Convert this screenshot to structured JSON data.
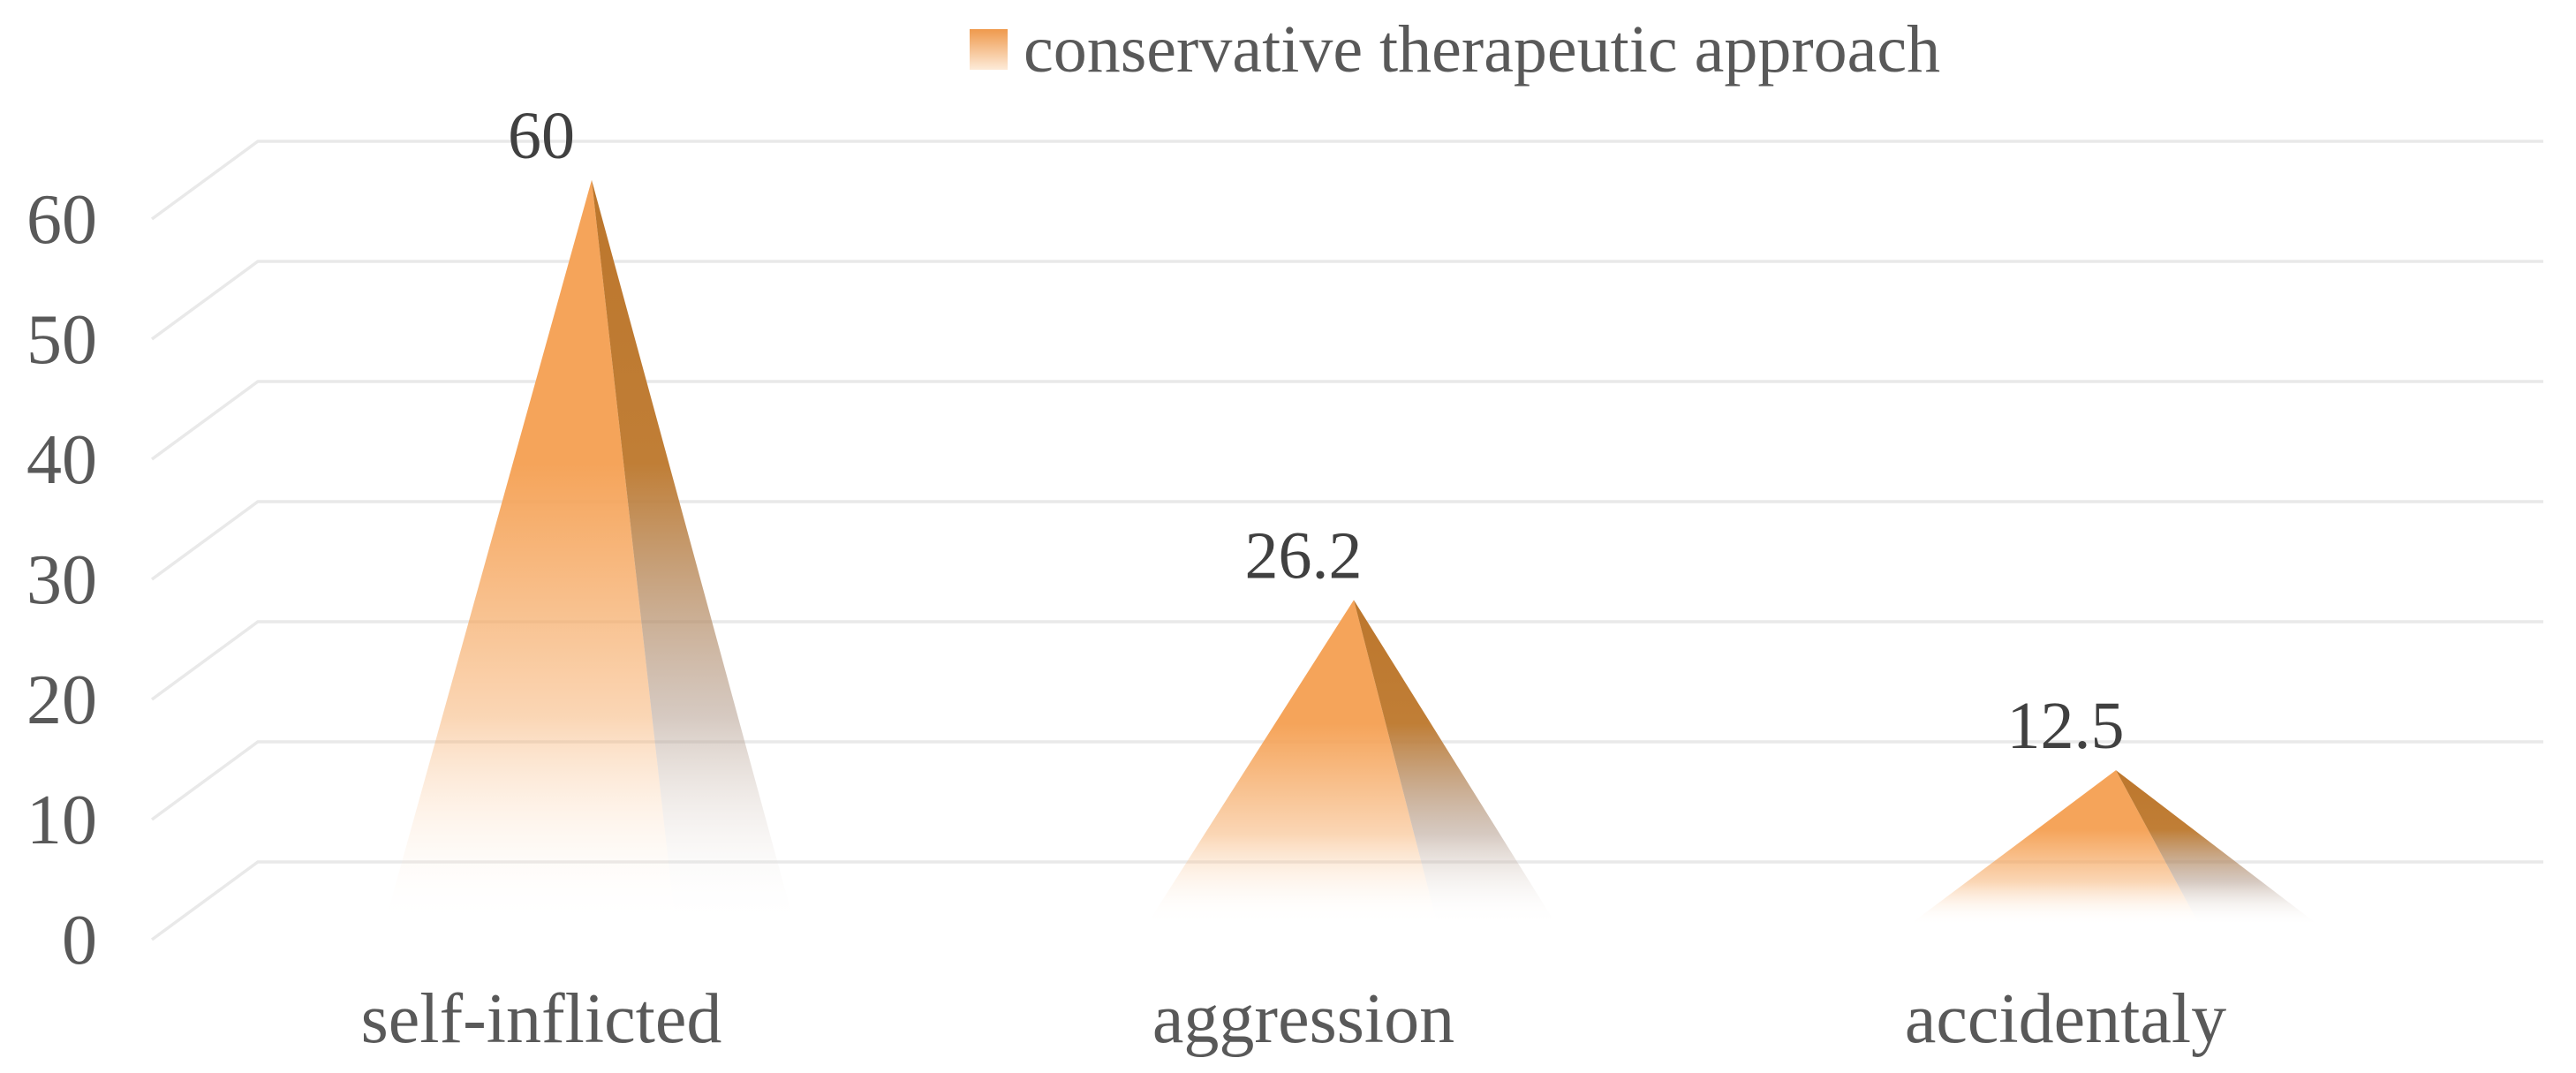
{
  "chart_data": {
    "type": "bar",
    "shape": "pyramid-3d",
    "title": "",
    "categories": [
      "self-inflicted",
      "aggression",
      "accidentaly"
    ],
    "series": [
      {
        "name": "conservative therapeutic approach",
        "values": [
          60,
          26.2,
          12.5
        ],
        "value_labels": [
          "60",
          "26.2",
          "12.5"
        ]
      }
    ],
    "legend": {
      "position": "top-center",
      "entries": [
        "conservative therapeutic approach"
      ]
    },
    "y_axis": {
      "min": 0,
      "max": 60,
      "tick_step": 10,
      "ticks": [
        60,
        50,
        40,
        30,
        20,
        10,
        0
      ]
    },
    "x_axis": {
      "labels": [
        "self-inflicted",
        "aggression",
        "accidentaly"
      ]
    },
    "grid": true,
    "colors": {
      "pyramid_front": "#F5A45A",
      "pyramid_side_top": "#BC762C",
      "pyramid_side_mid": "#C07E36",
      "pyramid_side_fade": "#AD9483",
      "legend_marker_top": "#EF994C",
      "legend_marker_bottom": "#FDEBD9",
      "gridline": "#E9E9E9",
      "axis_text": "#595959",
      "data_label_text": "#404040"
    }
  }
}
